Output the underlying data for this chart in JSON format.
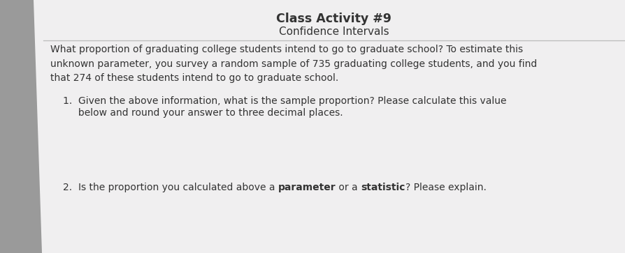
{
  "title": "Class Activity #9",
  "subtitle": "Confidence Intervals",
  "bg_desk": "#8b7355",
  "bg_binder": "#9a9a9a",
  "paper_color": "#f0eff0",
  "title_fontsize": 12.5,
  "subtitle_fontsize": 11,
  "body_fontsize": 10.0,
  "body_text": "What proportion of graduating college students intend to go to graduate school? To estimate this\nunknown parameter, you survey a random sample of 735 graduating college students, and you find\nthat 274 of these students intend to go to graduate school.",
  "item1_line1": "1.  Given the above information, what is the sample proportion? Please calculate this value",
  "item1_line2": "     below and round your answer to three decimal places.",
  "item2_prefix": "2.  ",
  "item2_part1": "Is the proportion you calculated above a ",
  "item2_bold1": "parameter",
  "item2_part2": " or a ",
  "item2_bold2": "statistic",
  "item2_part3": "? Please explain.",
  "line_color": "#bbbbbb",
  "text_color": "#333333"
}
